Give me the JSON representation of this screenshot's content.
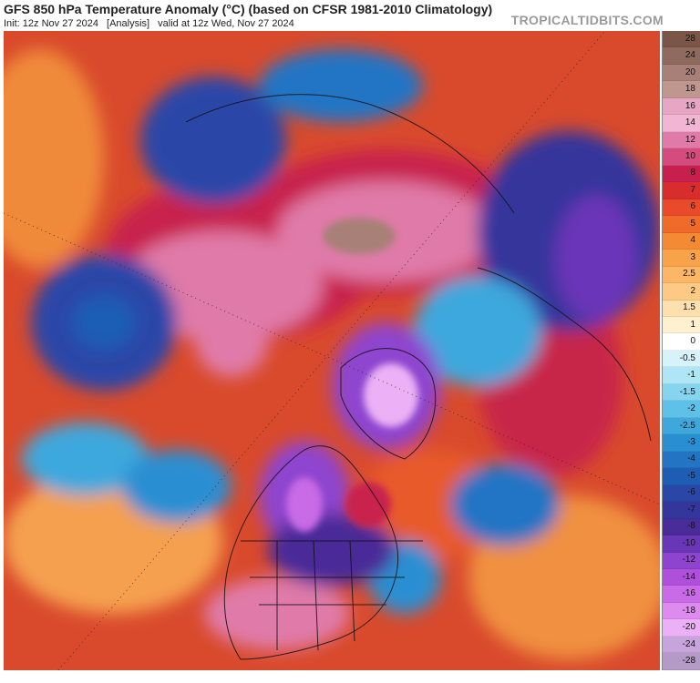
{
  "header": {
    "title": "GFS 850 hPa Temperature Anomaly (°C) (based on CFSR 1981-2010 Climatology)",
    "init": "Init: 12z Nov 27 2024",
    "status": "[Analysis]",
    "valid": "valid at 12z Wed, Nov 27 2024",
    "watermark": "TROPICALTIDBITS.COM"
  },
  "map": {
    "projection": "north-polar-stereographic",
    "variable": "850 hPa temperature anomaly"
  },
  "colorbar": {
    "unit": "°C",
    "levels": [
      {
        "label": "28",
        "color": "#7a5548"
      },
      {
        "label": "24",
        "color": "#8f6a5e"
      },
      {
        "label": "20",
        "color": "#a88077"
      },
      {
        "label": "18",
        "color": "#c0978f"
      },
      {
        "label": "16",
        "color": "#e7a6c4"
      },
      {
        "label": "14",
        "color": "#f0b6d3"
      },
      {
        "label": "12",
        "color": "#e07aa8"
      },
      {
        "label": "10",
        "color": "#d64b7d"
      },
      {
        "label": "8",
        "color": "#c8204e"
      },
      {
        "label": "7",
        "color": "#d92c2c"
      },
      {
        "label": "6",
        "color": "#e84a2a"
      },
      {
        "label": "5",
        "color": "#f06a2a"
      },
      {
        "label": "4",
        "color": "#f58a35"
      },
      {
        "label": "3",
        "color": "#f8a24a"
      },
      {
        "label": "2.5",
        "color": "#fbb766"
      },
      {
        "label": "2",
        "color": "#fdc985"
      },
      {
        "label": "1.5",
        "color": "#fde0ad"
      },
      {
        "label": "1",
        "color": "#fff0d0"
      },
      {
        "label": "0",
        "color": "#ffffff"
      },
      {
        "label": "-0.5",
        "color": "#d6f3fb"
      },
      {
        "label": "-1",
        "color": "#aee6f6"
      },
      {
        "label": "-1.5",
        "color": "#86d5f0"
      },
      {
        "label": "-2",
        "color": "#5fc0e8"
      },
      {
        "label": "-2.5",
        "color": "#3ea8dd"
      },
      {
        "label": "-3",
        "color": "#2a8fd2"
      },
      {
        "label": "-4",
        "color": "#2375c4"
      },
      {
        "label": "-5",
        "color": "#1f5db5"
      },
      {
        "label": "-6",
        "color": "#2a47a8"
      },
      {
        "label": "-7",
        "color": "#35369c"
      },
      {
        "label": "-8",
        "color": "#4a2c98"
      },
      {
        "label": "-10",
        "color": "#6a36b8"
      },
      {
        "label": "-12",
        "color": "#8e44cf"
      },
      {
        "label": "-14",
        "color": "#b04fdc"
      },
      {
        "label": "-16",
        "color": "#c96ae6"
      },
      {
        "label": "-18",
        "color": "#dd8bef"
      },
      {
        "label": "-20",
        "color": "#ebb0f5"
      },
      {
        "label": "-24",
        "color": "#c7a5dc"
      },
      {
        "label": "-28",
        "color": "#b39ac7"
      }
    ]
  }
}
